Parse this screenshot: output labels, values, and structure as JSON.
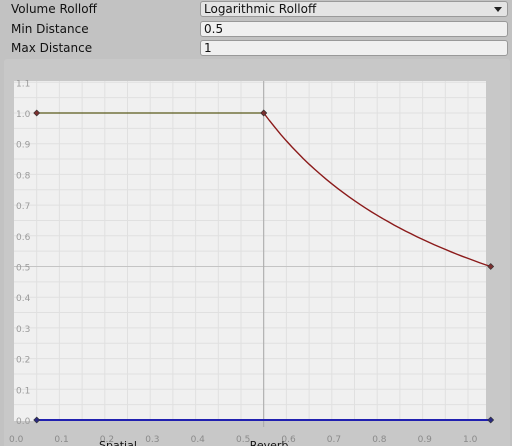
{
  "properties": {
    "volume_rolloff": {
      "label": "Volume Rolloff",
      "value": "Logarithmic Rolloff"
    },
    "min_distance": {
      "label": "Min Distance",
      "value": "0.5"
    },
    "max_distance": {
      "label": "Max Distance",
      "value": "1"
    }
  },
  "chart_data": {
    "type": "line",
    "xlim": [
      0.0,
      1.05
    ],
    "ylim": [
      0.0,
      1.1
    ],
    "x_ticks": [
      "0.0",
      "0.1",
      "0.2",
      "0.3",
      "0.4",
      "0.5",
      "0.6",
      "0.7",
      "0.8",
      "0.9",
      "1.0"
    ],
    "y_ticks": [
      "0.0",
      "0.1",
      "0.2",
      "0.3",
      "0.4",
      "0.5",
      "0.6",
      "0.7",
      "0.8",
      "0.9",
      "1.0",
      "1.1"
    ],
    "grid": true,
    "bottom_labels": [
      "Spatial",
      "Reverb"
    ],
    "series": [
      {
        "color": "#5a5a1a",
        "points": [
          [
            0.05,
            1.0
          ],
          [
            0.55,
            1.0
          ]
        ]
      },
      {
        "color": "#8b1a1a",
        "curve": "logarithmic",
        "points": [
          [
            0.55,
            1.0
          ],
          [
            1.05,
            0.5
          ]
        ]
      },
      {
        "color": "#2020b0",
        "points": [
          [
            0.05,
            0.0
          ],
          [
            1.05,
            0.0
          ]
        ]
      }
    ],
    "marker_line_x": 0.55
  }
}
